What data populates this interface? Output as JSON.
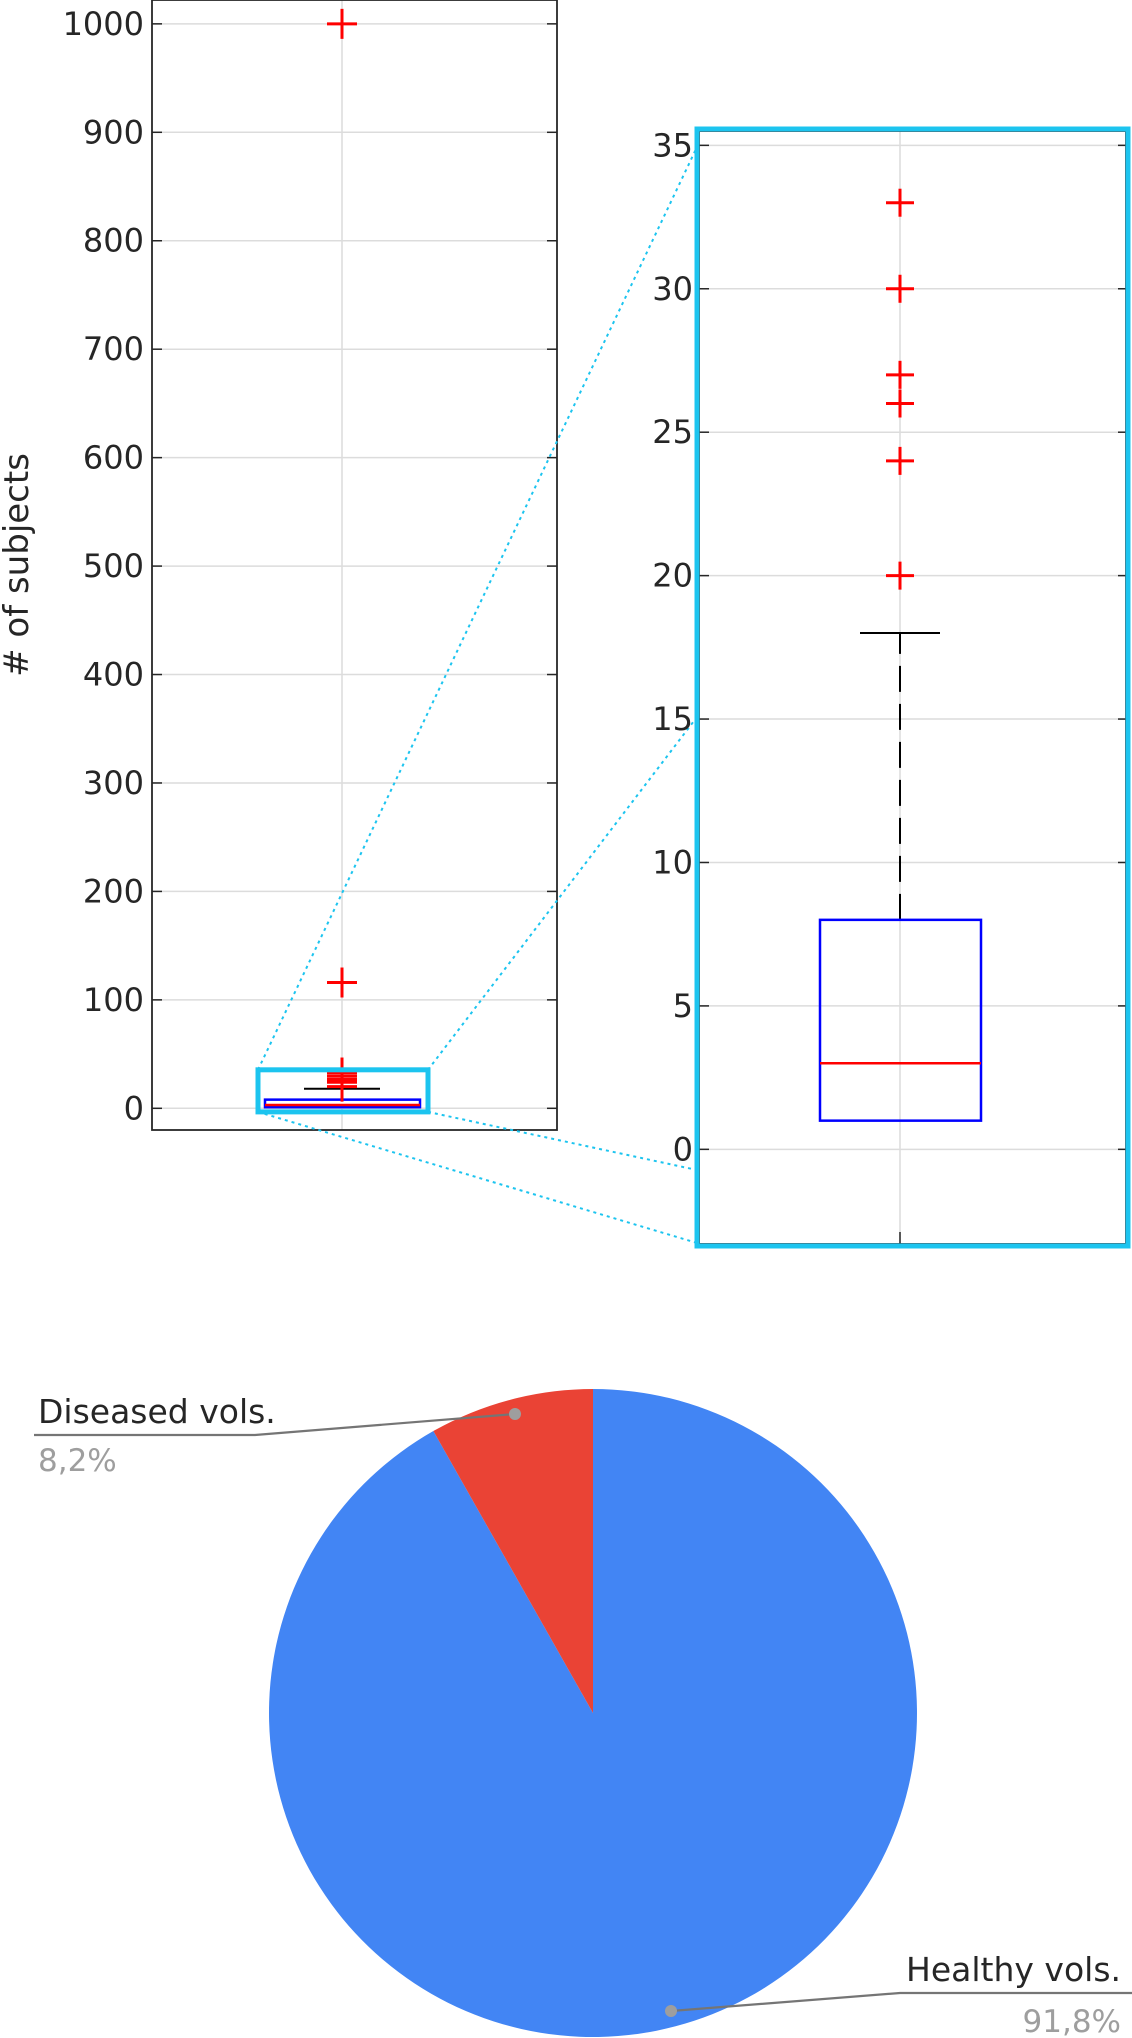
{
  "chart_data": [
    {
      "type": "box",
      "ylabel": "# of subjects",
      "ylim": [
        -20,
        1022
      ],
      "yticks": [
        "0",
        "100",
        "200",
        "300",
        "400",
        "500",
        "600",
        "700",
        "800",
        "900",
        "1000"
      ],
      "grid": true,
      "box": {
        "q1": 1,
        "median": 3,
        "q3": 8,
        "whisker_low": 0,
        "whisker_high": 18
      },
      "outliers": [
        20,
        24,
        26,
        27,
        30,
        33,
        116,
        1000
      ],
      "colors": {
        "box": "#0000ff",
        "median": "#ff0000",
        "outlier": "#ff0000",
        "whisker": "#000000",
        "zoom_frame": "#1cc4ef"
      },
      "zoom": {
        "ylim": [
          -3.3,
          35.5
        ],
        "yticks": [
          "0",
          "5",
          "10",
          "15",
          "20",
          "25",
          "30",
          "35"
        ],
        "box": {
          "q1": 1,
          "median": 3,
          "q3": 8,
          "whisker_high": 18
        },
        "outliers": [
          20,
          24,
          26,
          27,
          30,
          33
        ]
      }
    },
    {
      "type": "pie",
      "slices": [
        {
          "label": "Diseased vols.",
          "pct_label": "8,2%",
          "value": 8.2,
          "color": "#ea4335"
        },
        {
          "label": "Healthy vols.",
          "pct_label": "91,8%",
          "value": 91.8,
          "color": "#4285f4"
        }
      ]
    }
  ]
}
